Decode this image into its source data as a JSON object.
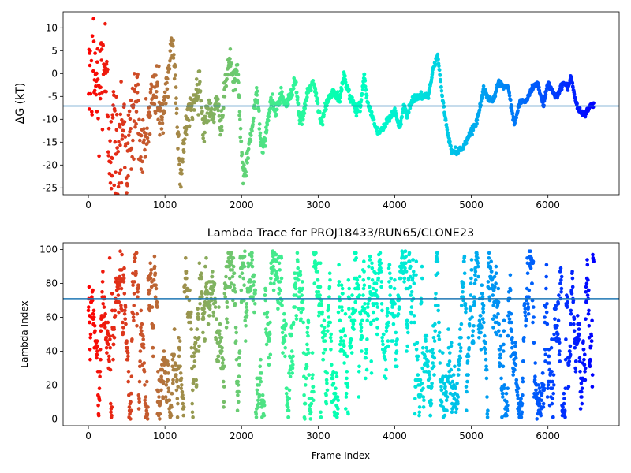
{
  "chart_data": [
    {
      "type": "scatter",
      "title": "",
      "xlabel": "",
      "ylabel": "ΔG (kT)",
      "xlim": [
        -330,
        6930
      ],
      "ylim": [
        -26.5,
        13.5
      ],
      "xticks": [
        0,
        1000,
        2000,
        3000,
        4000,
        5000,
        6000
      ],
      "yticks": [
        10,
        5,
        0,
        -5,
        -10,
        -15,
        -20,
        -25
      ],
      "reference_line": -7.1,
      "reference_line_color": "#1f77b4",
      "colormap": "rainbow (reversed with frame index: red at start, violet at end)",
      "trace_anchors": {
        "frame": [
          0,
          60,
          130,
          200,
          260,
          320,
          380,
          450,
          500,
          560,
          620,
          660,
          700,
          760,
          820,
          880,
          960,
          1020,
          1080,
          1110,
          1140,
          1180,
          1200,
          1260,
          1330,
          1400,
          1450,
          1500,
          1560,
          1620,
          1680,
          1740,
          1800,
          1840,
          1900,
          1950,
          1990,
          2020,
          2060,
          2100,
          2140,
          2200,
          2250,
          2290,
          2340,
          2400,
          2460,
          2520,
          2580,
          2640,
          2700,
          2760,
          2800,
          2860,
          2940,
          3040,
          3120,
          3200,
          3280,
          3340,
          3380,
          3440,
          3500,
          3560,
          3600,
          3640,
          3700,
          3780,
          3850,
          3920,
          4000,
          4060,
          4120,
          4160,
          4220,
          4280,
          4360,
          4440,
          4500,
          4560,
          4620,
          4680,
          4740,
          4820,
          4900,
          4980,
          5060,
          5120,
          5160,
          5200,
          5280,
          5360,
          5420,
          5480,
          5560,
          5640,
          5720,
          5800,
          5860,
          5940,
          6000,
          6060,
          6120,
          6200,
          6260,
          6300,
          6360,
          6400,
          6480,
          6560,
          6600
        ],
        "dG": [
          2,
          4,
          -6,
          5,
          -12,
          -14,
          -18,
          -8,
          -20,
          -13,
          -5,
          -10,
          -18,
          -14,
          -6,
          -3,
          -10,
          -5,
          7,
          5,
          -3,
          -16,
          -23,
          -13,
          -8,
          -5,
          -1,
          -12,
          -8,
          -9,
          -7,
          -11,
          -1,
          3,
          -2,
          1,
          -14,
          -23,
          -21,
          -15,
          -12,
          -3,
          -14,
          -16,
          -10,
          -6,
          -8,
          -4,
          -7,
          -5,
          -1,
          -10,
          -10,
          -4,
          -2,
          -11,
          -6,
          -4,
          -6,
          0,
          -3,
          -6,
          -8,
          -7,
          0,
          -6,
          -9,
          -13,
          -12,
          -10,
          -8,
          -12,
          -7,
          -9,
          -6,
          -5,
          -5,
          -5,
          1,
          4,
          -5,
          -12,
          -17,
          -17,
          -16,
          -13,
          -11,
          -7,
          -3,
          -5,
          -6,
          -2,
          -3,
          -3,
          -11,
          -6,
          -6,
          -3,
          -2,
          -7,
          -2,
          -4,
          -5,
          -2,
          -3,
          -1,
          -6,
          -8,
          -9,
          -7,
          -7
        ],
        "noise": [
          9,
          9,
          8,
          8,
          8,
          7,
          7,
          7,
          6,
          6,
          5,
          5,
          5,
          5,
          4,
          4,
          3,
          3,
          2,
          2,
          2,
          2,
          2,
          2,
          2,
          2,
          1.5,
          1.5,
          1.5,
          1.5,
          1.5,
          1.5,
          1.5,
          1.5,
          1.2,
          1,
          1,
          1,
          1,
          1,
          1,
          1,
          1,
          1,
          1,
          0.8,
          0.8,
          0.8,
          0.8,
          0.6,
          0.6,
          0.6,
          0.6,
          0.5,
          0.5,
          0.5,
          0.5,
          0.5,
          0.5,
          0.5,
          0.5,
          0.5,
          0.5,
          0.5,
          0.4,
          0.4,
          0.4,
          0.4,
          0.4,
          0.4,
          0.4,
          0.4,
          0.4,
          0.4,
          0.4,
          0.4,
          0.3,
          0.3,
          0.3,
          0.3,
          0.3,
          0.3,
          0.3,
          0.3,
          0.3,
          0.3,
          0.3,
          0.3,
          0.3,
          0.3,
          0.3,
          0.3,
          0.3,
          0.3,
          0.3,
          0.3,
          0.3,
          0.3,
          0.3,
          0.3,
          0.3,
          0.3,
          0.3,
          0.3,
          0.3,
          0.3,
          0.3,
          0.3,
          0.3,
          0.3,
          0.3
        ]
      },
      "frame_count": 6600
    },
    {
      "type": "scatter",
      "title": "Lambda Trace for PROJ18433/RUN65/CLONE23",
      "xlabel": "Frame Index",
      "ylabel": "Lambda Index",
      "xlim": [
        -330,
        6930
      ],
      "ylim": [
        -4,
        104
      ],
      "xticks": [
        0,
        1000,
        2000,
        3000,
        4000,
        5000,
        6000
      ],
      "yticks": [
        0,
        20,
        40,
        60,
        80,
        100
      ],
      "reference_line": 71,
      "reference_line_color": "#1f77b4",
      "colormap": "rainbow (reversed with frame index: red at start, violet at end)",
      "lambda_range": [
        0,
        99
      ],
      "frame_count": 6600
    }
  ]
}
